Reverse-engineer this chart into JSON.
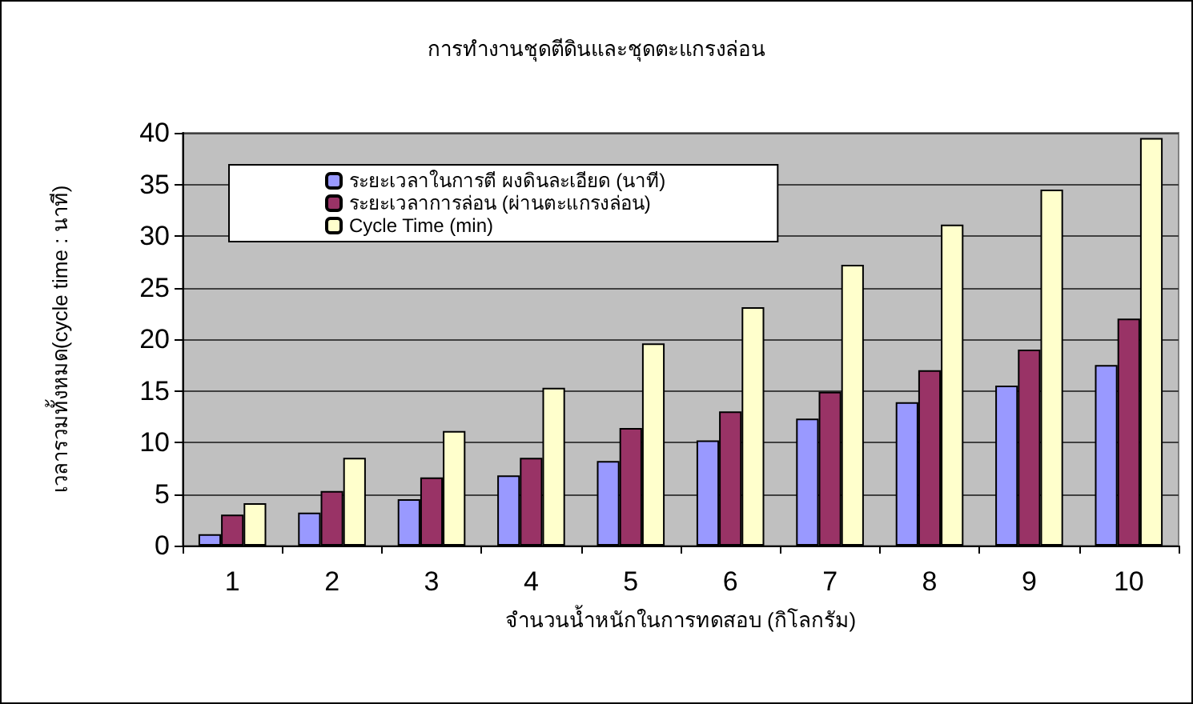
{
  "chart_data": {
    "type": "bar",
    "title": "การทำงานชุดตีดินและชุดตะแกรงล่อน",
    "xlabel": "จำนวนน้ำหนักในการทดสอบ (กิโลกรัม)",
    "ylabel": "เวลารวมทั้งหมด(cycle time : นาที)",
    "categories": [
      "1",
      "2",
      "3",
      "4",
      "5",
      "6",
      "7",
      "8",
      "9",
      "10"
    ],
    "series": [
      {
        "name": "ระยะเวลาในการตี ผงดินละเอียด (นาที)",
        "color": "#9999ff",
        "values": [
          1.1,
          3.2,
          4.5,
          6.8,
          8.2,
          10.2,
          12.3,
          13.9,
          15.5,
          17.5
        ]
      },
      {
        "name": "ระยะเวลาการล่อน (ผ่านตะแกรงล่อน)",
        "color": "#993366",
        "values": [
          3.0,
          5.3,
          6.6,
          8.5,
          11.4,
          13.0,
          14.9,
          17.0,
          19.0,
          22.0
        ]
      },
      {
        "name": "Cycle Time (min)",
        "color": "#ffffcc",
        "values": [
          4.1,
          8.5,
          11.1,
          15.3,
          19.6,
          23.1,
          27.2,
          31.1,
          34.5,
          39.5
        ]
      }
    ],
    "ylim": [
      0,
      40
    ],
    "yticks": [
      0,
      5,
      10,
      15,
      20,
      25,
      30,
      35,
      40
    ],
    "grid": "y",
    "legend": "top left"
  }
}
